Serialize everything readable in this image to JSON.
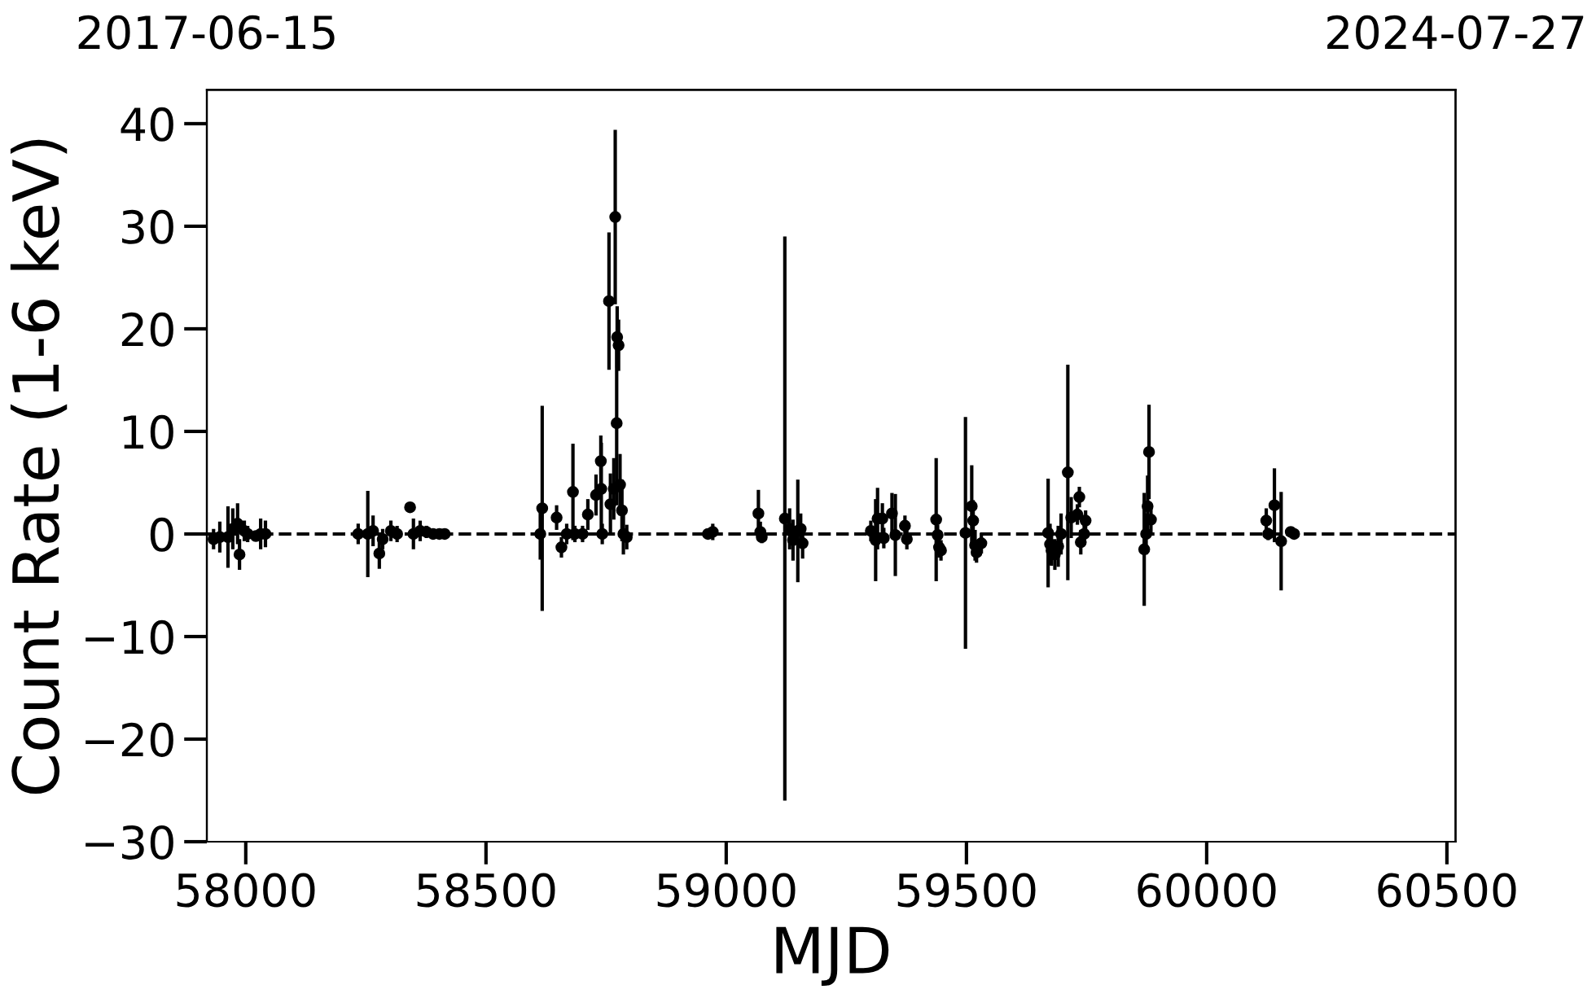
{
  "chart_data": {
    "type": "scatter",
    "xlabel": "MJD",
    "ylabel": "Count Rate (1-6 keV)",
    "xlim": [
      57919,
      60518
    ],
    "xticks": [
      58000,
      58500,
      59000,
      59500,
      60000,
      60500
    ],
    "ylim": [
      -30,
      43.3
    ],
    "yticks": [
      -30,
      -20,
      -10,
      0,
      10,
      20,
      30,
      40
    ],
    "x2lim": [
      "2017-06-15",
      "2024-07-27"
    ],
    "x2ticks": [
      "2017-06-15",
      "2024-07-27"
    ],
    "marker": "circle",
    "grid": false,
    "legend": false,
    "ref_lines": [
      {
        "axis": "y",
        "value": 0,
        "color": "#000000",
        "line_style": "dashed"
      }
    ],
    "series": [
      {
        "color": "#000000",
        "x": [
          57933,
          57946,
          57963,
          57973,
          57983,
          57987,
          57997,
          58004,
          58021,
          58031,
          58041,
          58234,
          58254,
          58265,
          58278,
          58285,
          58302,
          58315,
          58342,
          58349,
          58363,
          58376,
          58390,
          58403,
          58414,
          58613,
          58617,
          58647,
          58657,
          58668,
          58681,
          58685,
          58701,
          58712,
          58729,
          58739,
          58740,
          58742,
          58756,
          58759,
          58766,
          58769,
          58772,
          58773,
          58776,
          58779,
          58783,
          58786,
          58793,
          58962,
          58972,
          59067,
          59071,
          59074,
          59122,
          59132,
          59139,
          59149,
          59155,
          59159,
          59301,
          59311,
          59315,
          59325,
          59328,
          59345,
          59352,
          59372,
          59376,
          59437,
          59440,
          59443,
          59447,
          59498,
          59511,
          59514,
          59518,
          59521,
          59531,
          59670,
          59674,
          59677,
          59684,
          59691,
          59697,
          59711,
          59718,
          59731,
          59735,
          59738,
          59745,
          59748,
          59870,
          59874,
          59877,
          59880,
          59884,
          60124,
          60128,
          60141,
          60155,
          60175,
          60182
        ],
        "values": [
          -0.5,
          -0.3,
          -0.3,
          0.5,
          1.0,
          -2.0,
          0.3,
          0.0,
          -0.2,
          0,
          0,
          0,
          0,
          0.3,
          -1.9,
          -0.5,
          0.3,
          0,
          2.6,
          0,
          0.3,
          0.2,
          0,
          0,
          0,
          0,
          2.5,
          1.6,
          -1.3,
          0,
          4.1,
          0,
          0,
          1.9,
          3.8,
          7.1,
          4.4,
          0,
          22.7,
          2.9,
          4.4,
          30.9,
          10.8,
          19.2,
          18.4,
          4.8,
          2.3,
          0,
          -0.3,
          0,
          0.2,
          2.0,
          0.2,
          -0.3,
          1.5,
          0.5,
          -0.6,
          0.3,
          0.5,
          -0.9,
          0.3,
          -0.6,
          1.5,
          1.5,
          -0.4,
          2.0,
          -0.1,
          0.8,
          -0.5,
          1.4,
          -0.1,
          -1.3,
          -1.6,
          0.1,
          2.7,
          1.3,
          -1.1,
          -1.8,
          -0.9,
          0.1,
          -1.0,
          -1.6,
          -2.0,
          -1.2,
          0,
          6.0,
          1.6,
          1.9,
          3.6,
          -0.8,
          0,
          1.3,
          -1.5,
          0,
          2.7,
          8.0,
          1.4,
          1.3,
          0,
          2.8,
          -0.7,
          0.2,
          0
        ],
        "errors": [
          1,
          1.5,
          3,
          2,
          2,
          1.5,
          1,
          0.8,
          0.5,
          1.5,
          1.3,
          1,
          4.2,
          1.5,
          1.5,
          1,
          1,
          0.8,
          0.5,
          1.5,
          1,
          0.6,
          0.5,
          0.4,
          0.4,
          2.5,
          10,
          1.2,
          1,
          1,
          4.7,
          0.8,
          0.8,
          1.5,
          2,
          2.5,
          4.5,
          1,
          6.7,
          3,
          3,
          8.5,
          8,
          3,
          2.5,
          3,
          3,
          2,
          1.2,
          0.3,
          0.8,
          2.3,
          1,
          0.6,
          27.5,
          2,
          2,
          5,
          1.5,
          1.5,
          1,
          4,
          3,
          1.5,
          1,
          2,
          4,
          1,
          1,
          6,
          1,
          1,
          1,
          11.3,
          4,
          2,
          1.5,
          1,
          1,
          5.3,
          2,
          1.5,
          1.5,
          2,
          2,
          10.5,
          2,
          1,
          1,
          1.2,
          1,
          1,
          5.5,
          2,
          3,
          4.6,
          1.5,
          1.2,
          0.6,
          3.6,
          4.8,
          0.4,
          0.3
        ]
      }
    ]
  }
}
